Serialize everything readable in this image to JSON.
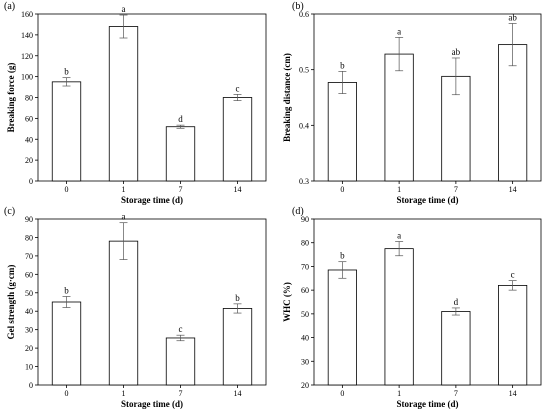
{
  "chart_data": [
    {
      "type": "bar",
      "panel_label": "(a)",
      "categories": [
        "0",
        "1",
        "7",
        "14"
      ],
      "values": [
        95,
        148,
        52,
        80
      ],
      "errors": [
        4,
        11,
        1.5,
        3
      ],
      "significance": [
        "b",
        "a",
        "d",
        "c"
      ],
      "xlabel": "Storage time (d)",
      "ylabel": "Breaking force (g)",
      "ylim": [
        0,
        160
      ],
      "yticks": [
        "0",
        "20",
        "40",
        "60",
        "80",
        "100",
        "120",
        "140",
        "160"
      ]
    },
    {
      "type": "bar",
      "panel_label": "(b)",
      "categories": [
        "0",
        "1",
        "7",
        "14"
      ],
      "values": [
        0.477,
        0.528,
        0.488,
        0.545
      ],
      "errors": [
        0.02,
        0.03,
        0.033,
        0.038
      ],
      "significance": [
        "b",
        "a",
        "ab",
        "ab"
      ],
      "xlabel": "Storage time (d)",
      "ylabel": "Breaking distance (cm)",
      "ylim": [
        0.3,
        0.6
      ],
      "yticks": [
        "0.3",
        "0.4",
        "0.5",
        "0.6"
      ]
    },
    {
      "type": "bar",
      "panel_label": "(c)",
      "categories": [
        "0",
        "1",
        "7",
        "14"
      ],
      "values": [
        45,
        78,
        25.5,
        41.5
      ],
      "errors": [
        3,
        10,
        1.5,
        2.5
      ],
      "significance": [
        "b",
        "a",
        "c",
        "b"
      ],
      "xlabel": "Storage time (d)",
      "ylabel": "Gel strength (g·cm)",
      "ylim": [
        0,
        90
      ],
      "yticks": [
        "0",
        "10",
        "20",
        "30",
        "40",
        "50",
        "60",
        "70",
        "80",
        "90"
      ]
    },
    {
      "type": "bar",
      "panel_label": "(d)",
      "categories": [
        "0",
        "1",
        "7",
        "14"
      ],
      "values": [
        68.5,
        77.5,
        51,
        62
      ],
      "errors": [
        3.5,
        3,
        1.5,
        2
      ],
      "significance": [
        "b",
        "a",
        "d",
        "c"
      ],
      "xlabel": "Storage time (d)",
      "ylabel": "WHC (%)",
      "ylim": [
        20,
        90
      ],
      "yticks": [
        "20",
        "30",
        "40",
        "50",
        "60",
        "70",
        "80",
        "90"
      ]
    }
  ]
}
